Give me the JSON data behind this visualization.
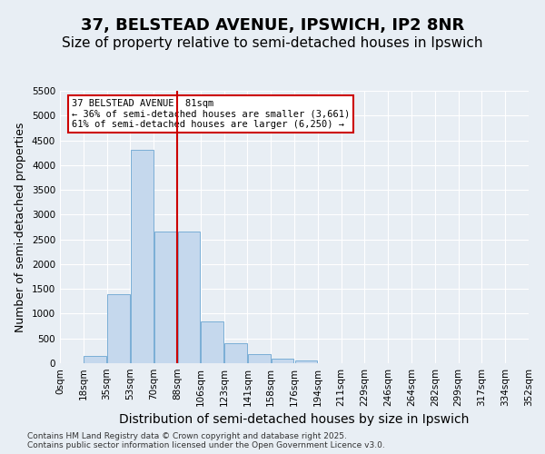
{
  "title1": "37, BELSTEAD AVENUE, IPSWICH, IP2 8NR",
  "title2": "Size of property relative to semi-detached houses in Ipswich",
  "xlabel": "Distribution of semi-detached houses by size in Ipswich",
  "ylabel": "Number of semi-detached properties",
  "bin_labels": [
    "0sqm",
    "18sqm",
    "35sqm",
    "53sqm",
    "70sqm",
    "88sqm",
    "106sqm",
    "123sqm",
    "141sqm",
    "158sqm",
    "176sqm",
    "194sqm",
    "211sqm",
    "229sqm",
    "246sqm",
    "264sqm",
    "282sqm",
    "299sqm",
    "317sqm",
    "334sqm",
    "352sqm"
  ],
  "bar_values": [
    0,
    150,
    1400,
    4300,
    2650,
    2650,
    850,
    400,
    180,
    90,
    50,
    0,
    0,
    0,
    0,
    0,
    0,
    0,
    0,
    0
  ],
  "bar_color": "#c5d8ed",
  "bar_edge_color": "#7aaed6",
  "vline_color": "#cc0000",
  "vline_pos": 4.5,
  "annotation_text": "37 BELSTEAD AVENUE: 81sqm\n← 36% of semi-detached houses are smaller (3,661)\n61% of semi-detached houses are larger (6,250) →",
  "annotation_box_color": "#ffffff",
  "annotation_box_edge_color": "#cc0000",
  "ylim": [
    0,
    5500
  ],
  "yticks": [
    0,
    500,
    1000,
    1500,
    2000,
    2500,
    3000,
    3500,
    4000,
    4500,
    5000,
    5500
  ],
  "background_color": "#e8eef4",
  "plot_background_color": "#e8eef4",
  "footer_text": "Contains HM Land Registry data © Crown copyright and database right 2025.\nContains public sector information licensed under the Open Government Licence v3.0.",
  "title1_fontsize": 13,
  "title2_fontsize": 11,
  "grid_color": "#ffffff",
  "tick_fontsize": 7.5,
  "ylabel_fontsize": 9,
  "xlabel_fontsize": 10
}
